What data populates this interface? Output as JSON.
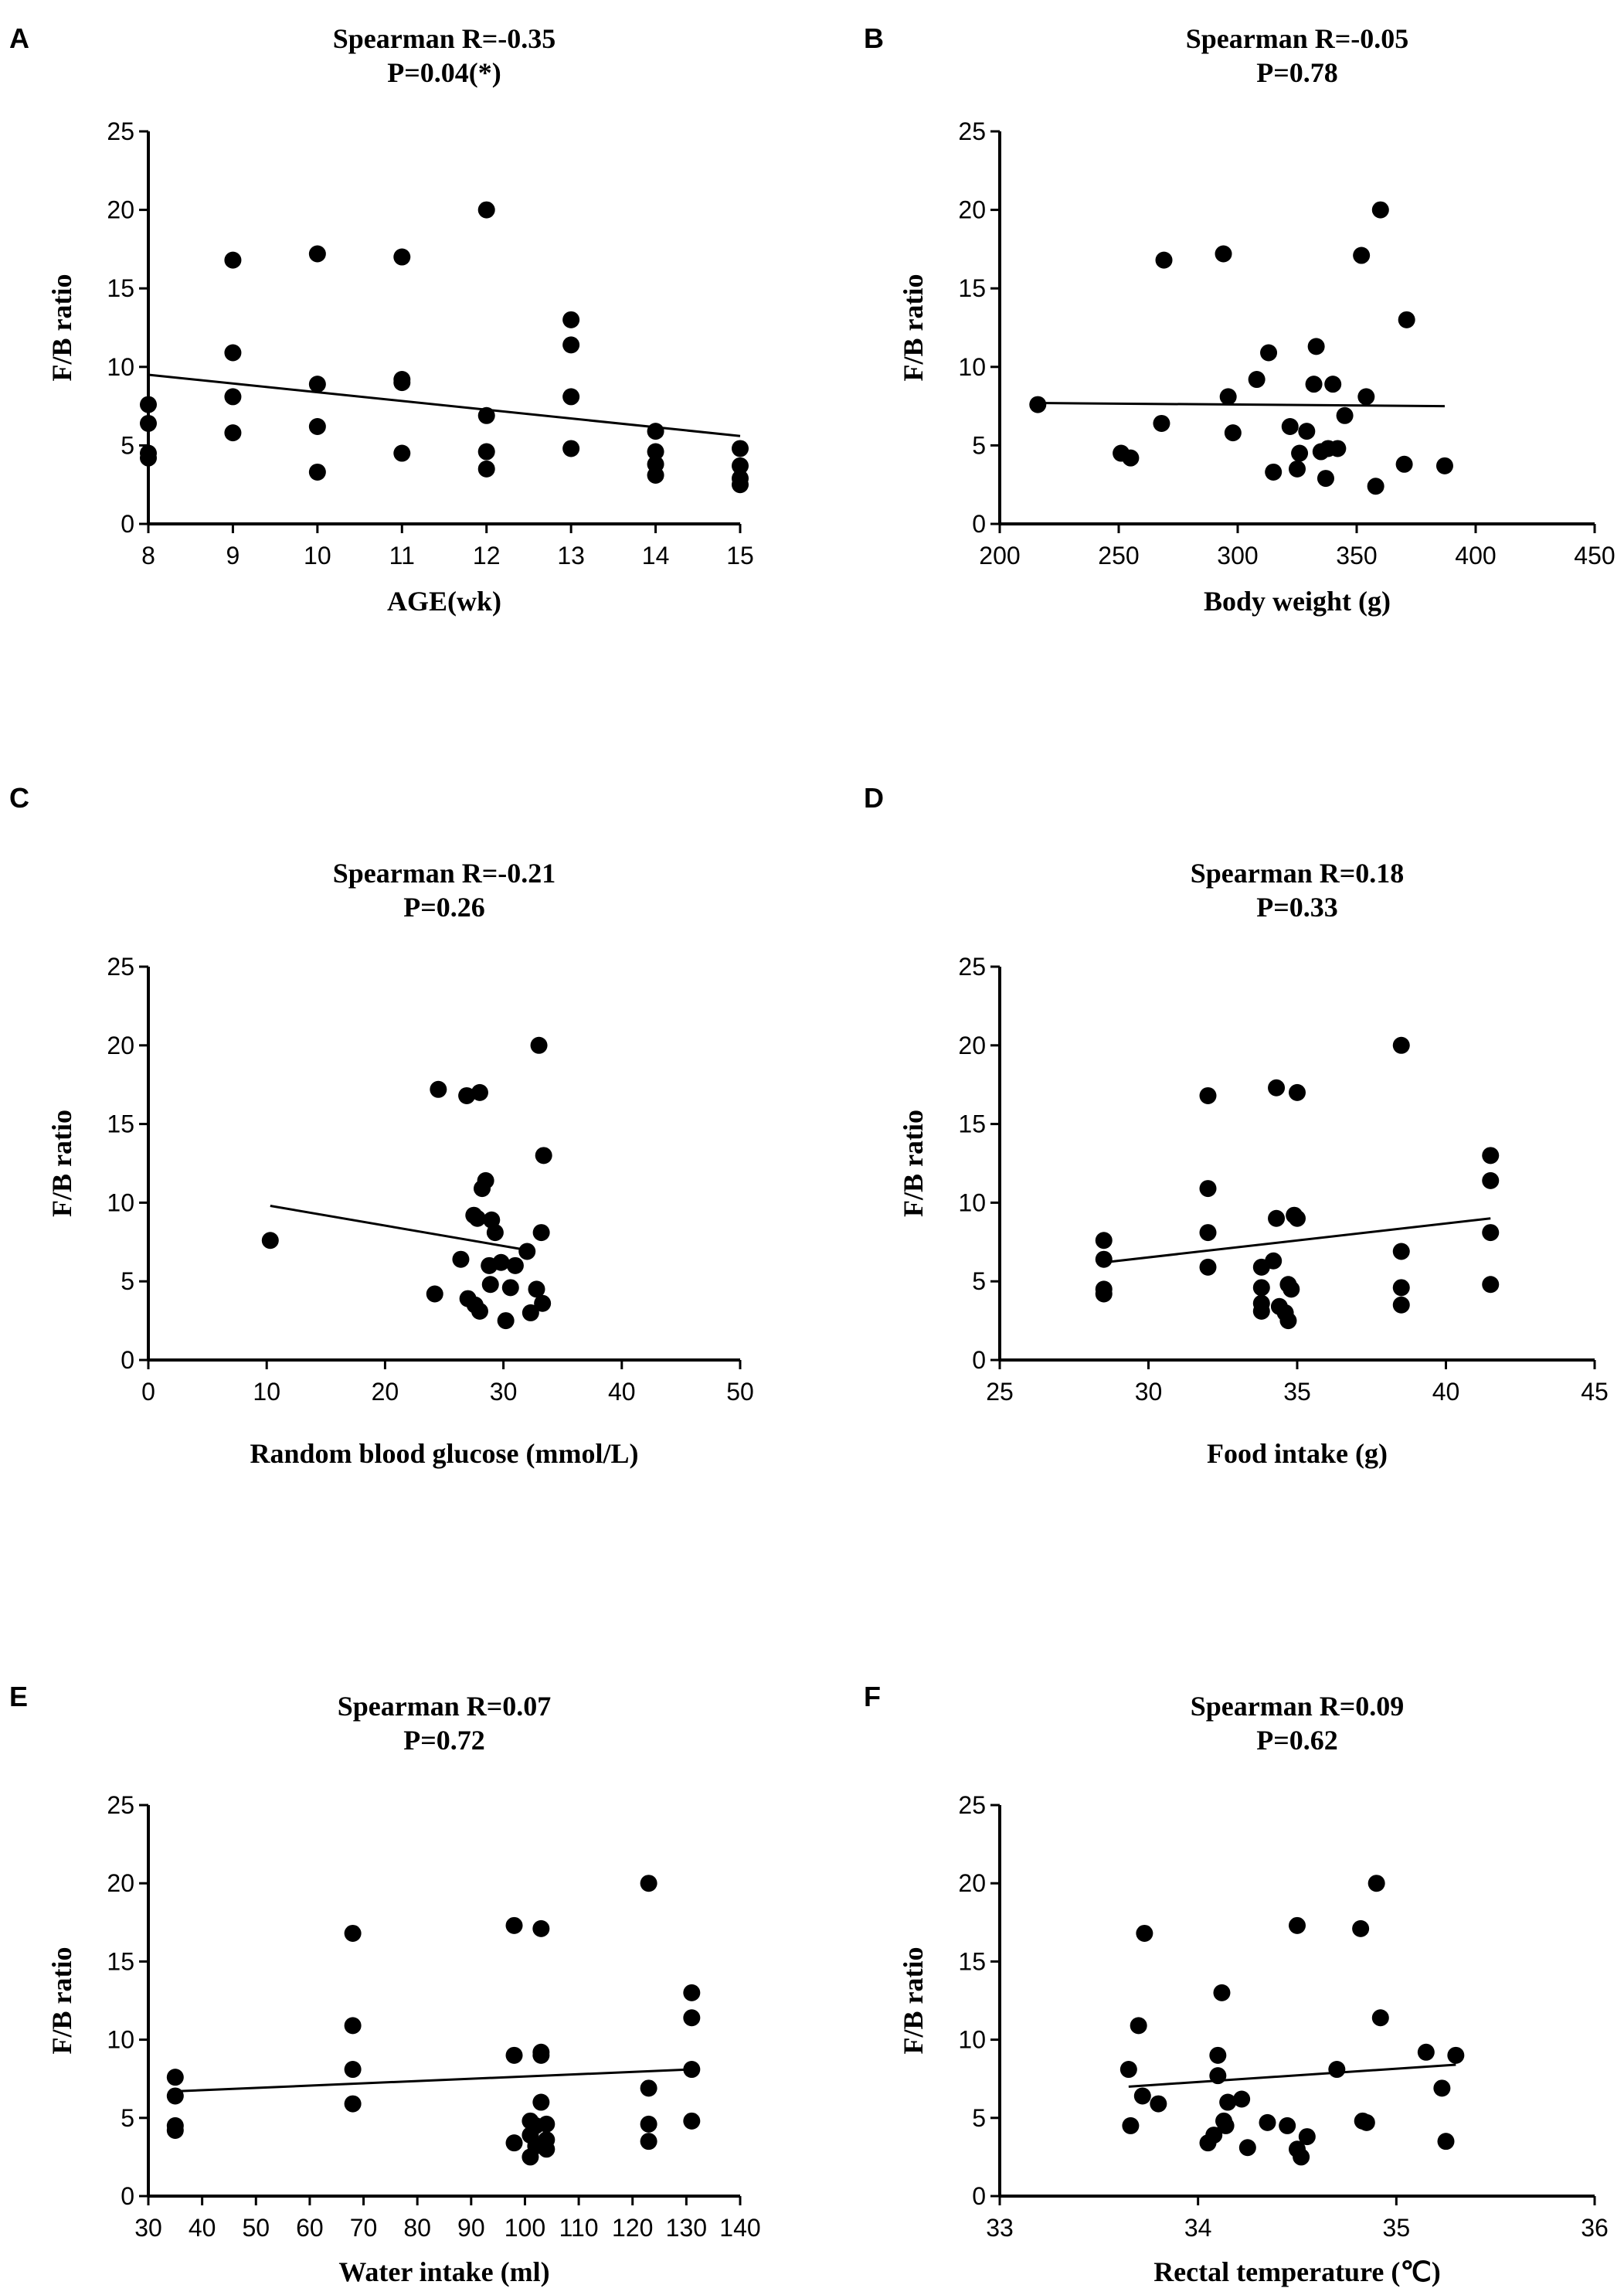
{
  "chart_data": [
    {
      "panel": "A",
      "type": "scatter",
      "title": "Spearman R=-0.35",
      "subtitle": "P=0.04(*)",
      "xlabel": "AGE(wk)",
      "ylabel": "F/B ratio",
      "xlim": [
        8,
        15
      ],
      "ylim": [
        0,
        25
      ],
      "xticks": [
        8,
        9,
        10,
        11,
        12,
        13,
        14,
        15
      ],
      "yticks": [
        0,
        5,
        10,
        15,
        20,
        25
      ],
      "x": [
        8,
        8,
        8,
        8,
        9,
        9,
        9,
        9,
        10,
        10,
        10,
        10,
        11,
        11,
        11,
        11,
        12,
        12,
        12,
        12,
        13,
        13,
        13,
        13,
        14,
        14,
        14,
        14,
        15,
        15,
        15,
        15
      ],
      "y": [
        7.6,
        6.4,
        4.5,
        4.2,
        16.8,
        10.9,
        8.1,
        5.8,
        17.2,
        8.9,
        6.2,
        3.3,
        17.0,
        9.2,
        9.0,
        4.5,
        20.0,
        6.9,
        4.6,
        3.5,
        13.0,
        11.4,
        8.1,
        4.8,
        5.9,
        4.6,
        3.8,
        3.1,
        4.8,
        3.7,
        2.9,
        2.5
      ],
      "fit": {
        "x": [
          8,
          15
        ],
        "y": [
          9.5,
          5.6
        ]
      }
    },
    {
      "panel": "B",
      "type": "scatter",
      "title": "Spearman R=-0.05",
      "subtitle": "P=0.78",
      "xlabel": "Body weight (g)",
      "ylabel": "F/B ratio",
      "xlim": [
        200,
        450
      ],
      "ylim": [
        0,
        25
      ],
      "xticks": [
        200,
        250,
        300,
        350,
        400,
        450
      ],
      "yticks": [
        0,
        5,
        10,
        15,
        20,
        25
      ],
      "x": [
        216,
        251,
        255,
        268,
        269,
        294,
        296,
        298,
        308,
        313,
        315,
        322,
        325,
        326,
        329,
        332,
        333,
        335,
        337,
        338,
        340,
        342,
        345,
        352,
        354,
        358,
        360,
        370,
        371,
        387
      ],
      "y": [
        7.6,
        4.5,
        4.2,
        6.4,
        16.8,
        17.2,
        8.1,
        5.8,
        9.2,
        10.9,
        3.3,
        6.2,
        3.5,
        4.5,
        5.9,
        8.9,
        11.3,
        4.6,
        2.9,
        4.8,
        8.9,
        4.8,
        6.9,
        17.1,
        8.1,
        2.4,
        20.0,
        3.8,
        13.0,
        3.7
      ],
      "fit": {
        "x": [
          216,
          387
        ],
        "y": [
          7.7,
          7.5
        ]
      }
    },
    {
      "panel": "C",
      "type": "scatter",
      "title": "Spearman R=-0.21",
      "subtitle": "P=0.26",
      "xlabel": "Random blood glucose (mmol/L)",
      "ylabel": "F/B ratio",
      "xlim": [
        0,
        50
      ],
      "ylim": [
        0,
        25
      ],
      "xticks": [
        0,
        10,
        20,
        30,
        40,
        50
      ],
      "yticks": [
        0,
        5,
        10,
        15,
        20,
        25
      ],
      "x": [
        10.3,
        24.2,
        24.5,
        26.4,
        26.9,
        27.0,
        27.5,
        27.6,
        27.8,
        28.0,
        28.0,
        28.2,
        28.5,
        28.8,
        28.9,
        29.0,
        29.3,
        29.8,
        30.2,
        30.6,
        31.0,
        32.0,
        32.3,
        32.8,
        33.0,
        33.2,
        33.3,
        33.4
      ],
      "y": [
        7.6,
        4.2,
        17.2,
        6.4,
        16.8,
        3.9,
        9.2,
        3.5,
        9.0,
        3.1,
        17.0,
        10.9,
        11.4,
        6.0,
        4.8,
        8.9,
        8.1,
        6.2,
        2.5,
        4.6,
        6.0,
        6.9,
        3.0,
        4.5,
        20.0,
        8.1,
        3.6,
        13.0
      ],
      "fit": {
        "x": [
          10.3,
          31.9
        ],
        "y": [
          9.8,
          7.0
        ]
      }
    },
    {
      "panel": "D",
      "type": "scatter",
      "title": "Spearman R=0.18",
      "subtitle": "P=0.33",
      "xlabel": "Food intake (g)",
      "ylabel": "F/B ratio",
      "xlim": [
        25,
        45
      ],
      "ylim": [
        0,
        25
      ],
      "xticks": [
        25,
        30,
        35,
        40,
        45
      ],
      "yticks": [
        0,
        5,
        10,
        15,
        20,
        25
      ],
      "x": [
        28.5,
        28.5,
        28.5,
        28.5,
        32.0,
        32.0,
        32.0,
        32.0,
        33.8,
        33.8,
        33.8,
        33.8,
        34.2,
        34.3,
        34.3,
        34.4,
        34.6,
        34.7,
        34.7,
        34.8,
        34.9,
        35.0,
        35.0,
        38.5,
        38.5,
        38.5,
        38.5,
        41.5,
        41.5,
        41.5,
        41.5
      ],
      "y": [
        7.6,
        6.4,
        4.5,
        4.2,
        16.8,
        10.9,
        8.1,
        5.9,
        5.9,
        4.6,
        3.6,
        3.1,
        6.3,
        17.3,
        9.0,
        3.4,
        3.0,
        4.8,
        2.5,
        4.5,
        9.2,
        17.0,
        9.0,
        20.0,
        6.9,
        4.6,
        3.5,
        13.0,
        11.4,
        8.1,
        4.8
      ],
      "fit": {
        "x": [
          28.5,
          41.5
        ],
        "y": [
          6.2,
          9.0
        ]
      }
    },
    {
      "panel": "E",
      "type": "scatter",
      "title": "Spearman R=0.07",
      "subtitle": "P=0.72",
      "xlabel": "Water intake (ml)",
      "ylabel": "F/B ratio",
      "xlim": [
        30,
        140
      ],
      "ylim": [
        0,
        25
      ],
      "xticks": [
        30,
        40,
        50,
        60,
        70,
        80,
        90,
        100,
        110,
        120,
        130,
        140
      ],
      "yticks": [
        0,
        5,
        10,
        15,
        20,
        25
      ],
      "x": [
        35,
        35,
        35,
        35,
        68,
        68,
        68,
        68,
        98,
        98,
        98,
        101,
        101,
        101,
        102,
        102,
        103,
        103,
        103,
        103,
        104,
        104,
        104,
        123,
        123,
        123,
        123,
        131,
        131,
        131,
        131
      ],
      "y": [
        7.6,
        6.4,
        4.5,
        4.2,
        16.8,
        10.9,
        8.1,
        5.9,
        17.3,
        9.0,
        3.4,
        4.8,
        3.9,
        2.5,
        4.5,
        3.2,
        17.1,
        9.2,
        9.0,
        6.0,
        4.6,
        3.6,
        3.0,
        20.0,
        6.9,
        4.6,
        3.5,
        13.0,
        11.4,
        8.1,
        4.8
      ],
      "fit": {
        "x": [
          35,
          131
        ],
        "y": [
          6.7,
          8.1
        ]
      }
    },
    {
      "panel": "F",
      "type": "scatter",
      "title": "Spearman R=0.09",
      "subtitle": "P=0.62",
      "xlabel": "Rectal temperature (℃)",
      "ylabel": "F/B ratio",
      "xlim": [
        33,
        36
      ],
      "ylim": [
        0,
        25
      ],
      "xticks": [
        33,
        34,
        35,
        36
      ],
      "yticks": [
        0,
        5,
        10,
        15,
        20,
        25
      ],
      "x": [
        33.65,
        33.66,
        33.7,
        33.72,
        33.73,
        33.8,
        34.05,
        34.08,
        34.1,
        34.1,
        34.12,
        34.13,
        34.14,
        34.15,
        34.22,
        34.25,
        34.35,
        34.45,
        34.5,
        34.5,
        34.52,
        34.55,
        34.7,
        34.82,
        34.83,
        34.85,
        34.9,
        34.92,
        35.15,
        35.23,
        35.25,
        35.3
      ],
      "y": [
        8.1,
        4.5,
        10.9,
        6.4,
        16.8,
        5.9,
        3.4,
        3.9,
        9.0,
        7.7,
        13.0,
        4.8,
        4.5,
        6.0,
        6.2,
        3.1,
        4.7,
        4.5,
        17.3,
        3.0,
        2.5,
        3.8,
        8.1,
        17.1,
        4.8,
        4.7,
        20.0,
        11.4,
        9.2,
        6.9,
        3.5,
        9.0
      ],
      "fit": {
        "x": [
          33.65,
          35.3
        ],
        "y": [
          7.0,
          8.4
        ]
      }
    }
  ]
}
